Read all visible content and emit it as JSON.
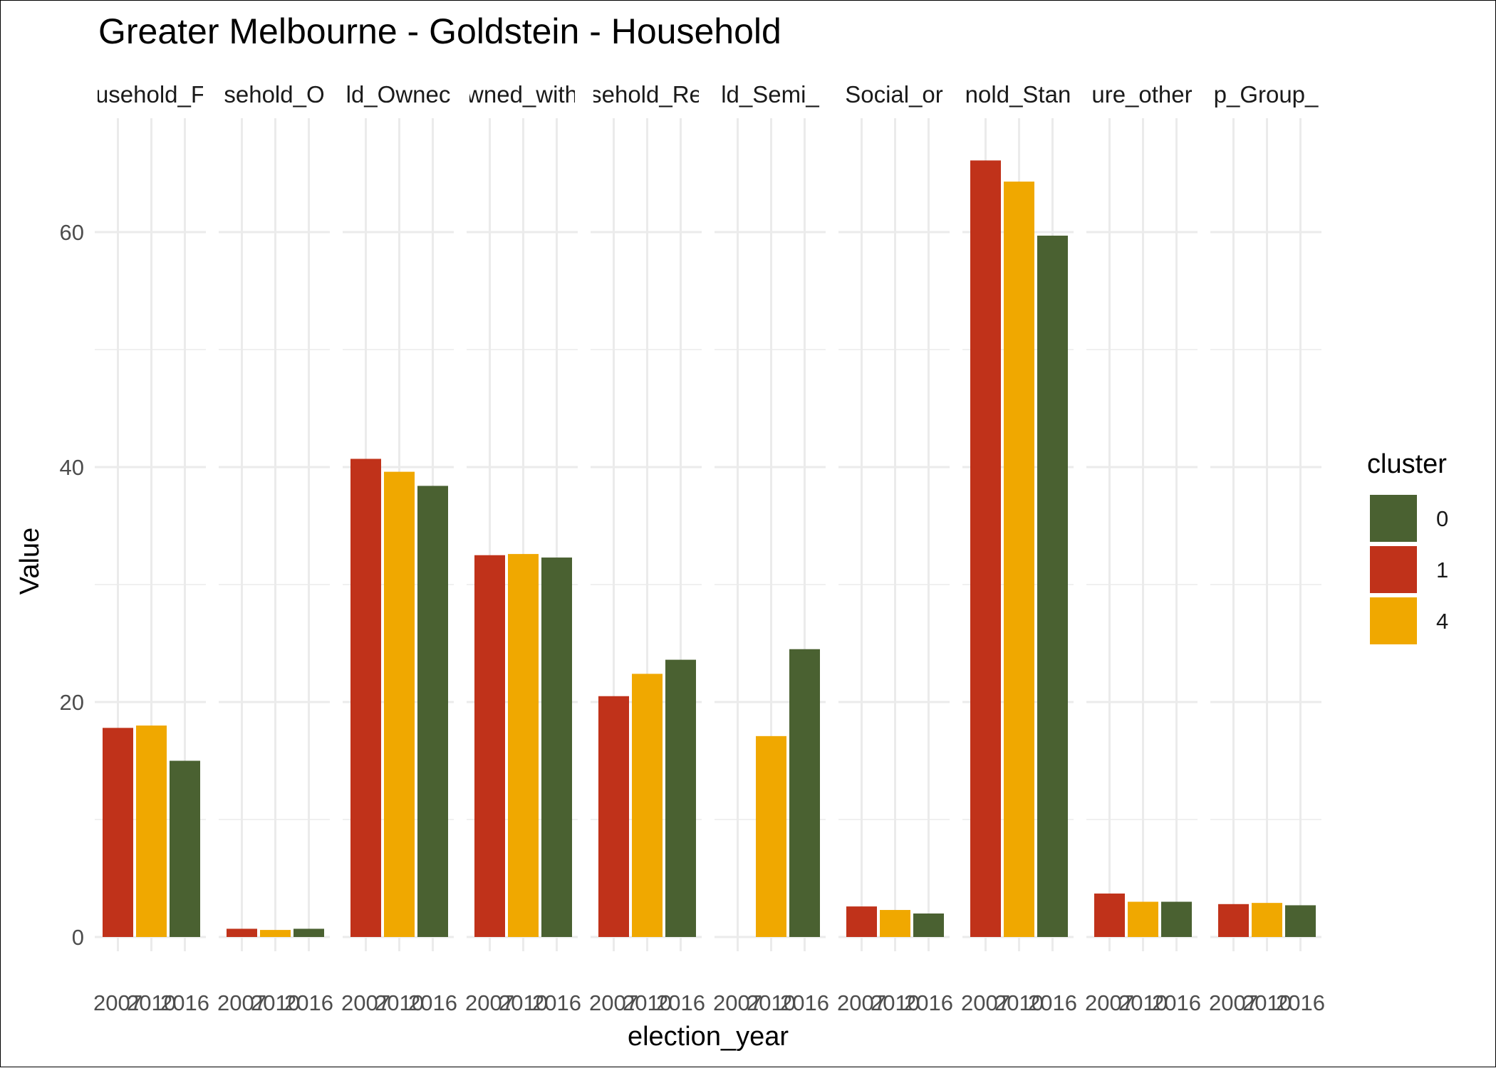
{
  "chart_data": {
    "type": "bar",
    "title": "Greater Melbourne - Goldstein - Household",
    "xlabel": "election_year",
    "ylabel": "Value",
    "ylim": [
      0,
      69
    ],
    "y_ticks": [
      0,
      20,
      40,
      60
    ],
    "grid": true,
    "legend_position": "right",
    "legend": {
      "title": "cluster",
      "entries": [
        {
          "label": "0",
          "color": "#4a6131"
        },
        {
          "label": "1",
          "color": "#c0321a"
        },
        {
          "label": "4",
          "color": "#f0a800"
        }
      ]
    },
    "categories": [
      "2007",
      "2010",
      "2016"
    ],
    "facets": [
      {
        "label": "usehold_F",
        "bars": [
          {
            "year": "2007",
            "value": 17.8,
            "cluster": "1"
          },
          {
            "year": "2010",
            "value": 18.0,
            "cluster": "4"
          },
          {
            "year": "2016",
            "value": 15.0,
            "cluster": "0"
          }
        ]
      },
      {
        "label": "sehold_O",
        "bars": [
          {
            "year": "2007",
            "value": 0.7,
            "cluster": "1"
          },
          {
            "year": "2010",
            "value": 0.6,
            "cluster": "4"
          },
          {
            "year": "2016",
            "value": 0.7,
            "cluster": "0"
          }
        ]
      },
      {
        "label": "ld_Ownec",
        "bars": [
          {
            "year": "2007",
            "value": 40.7,
            "cluster": "1"
          },
          {
            "year": "2010",
            "value": 39.6,
            "cluster": "4"
          },
          {
            "year": "2016",
            "value": 38.4,
            "cluster": "0"
          }
        ]
      },
      {
        "label": "wned_with",
        "bars": [
          {
            "year": "2007",
            "value": 32.5,
            "cluster": "1"
          },
          {
            "year": "2010",
            "value": 32.6,
            "cluster": "4"
          },
          {
            "year": "2016",
            "value": 32.3,
            "cluster": "0"
          }
        ]
      },
      {
        "label": "sehold_Re",
        "bars": [
          {
            "year": "2007",
            "value": 20.5,
            "cluster": "1"
          },
          {
            "year": "2010",
            "value": 22.4,
            "cluster": "4"
          },
          {
            "year": "2016",
            "value": 23.6,
            "cluster": "0"
          }
        ]
      },
      {
        "label": "ld_Semi_",
        "bars": [
          {
            "year": "2010",
            "value": 17.1,
            "cluster": "4"
          },
          {
            "year": "2016",
            "value": 24.5,
            "cluster": "0"
          }
        ]
      },
      {
        "label": "Social_or",
        "bars": [
          {
            "year": "2007",
            "value": 2.6,
            "cluster": "1"
          },
          {
            "year": "2010",
            "value": 2.3,
            "cluster": "4"
          },
          {
            "year": "2016",
            "value": 2.0,
            "cluster": "0"
          }
        ]
      },
      {
        "label": "nold_Stan",
        "bars": [
          {
            "year": "2007",
            "value": 66.1,
            "cluster": "1"
          },
          {
            "year": "2010",
            "value": 64.3,
            "cluster": "4"
          },
          {
            "year": "2016",
            "value": 59.7,
            "cluster": "0"
          }
        ]
      },
      {
        "label": "ure_other",
        "bars": [
          {
            "year": "2007",
            "value": 3.7,
            "cluster": "1"
          },
          {
            "year": "2010",
            "value": 3.0,
            "cluster": "4"
          },
          {
            "year": "2016",
            "value": 3.0,
            "cluster": "0"
          }
        ]
      },
      {
        "label": "p_Group_",
        "bars": [
          {
            "year": "2007",
            "value": 2.8,
            "cluster": "1"
          },
          {
            "year": "2010",
            "value": 2.9,
            "cluster": "4"
          },
          {
            "year": "2016",
            "value": 2.7,
            "cluster": "0"
          }
        ]
      }
    ]
  }
}
